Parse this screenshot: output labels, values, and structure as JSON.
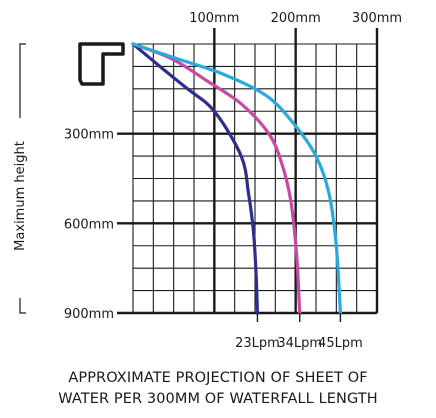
{
  "chart_data": {
    "type": "line",
    "x_ticks": [
      {
        "value": 100,
        "label": "100mm"
      },
      {
        "value": 200,
        "label": "200mm"
      },
      {
        "value": 300,
        "label": "300mm"
      }
    ],
    "y_ticks": [
      {
        "value": 300,
        "label": "300mm"
      },
      {
        "value": 600,
        "label": "600mm"
      },
      {
        "value": 900,
        "label": "900mm"
      }
    ],
    "xlim": [
      0,
      300
    ],
    "ylim": [
      0,
      900
    ],
    "ylabel": "Maximum height",
    "grid": true,
    "series": [
      {
        "name": "23Lpm",
        "color": "#2e2e8c",
        "x": [
          0,
          33,
          67,
          100,
          133,
          142,
          148,
          151,
          153
        ],
        "y": [
          0,
          75,
          150,
          225,
          375,
          500,
          625,
          750,
          900
        ]
      },
      {
        "name": "34Lpm",
        "color": "#c64aa4",
        "x": [
          0,
          48,
          92,
          133,
          167,
          183,
          194,
          201,
          205
        ],
        "y": [
          0,
          50,
          125,
          200,
          300,
          400,
          525,
          700,
          900
        ]
      },
      {
        "name": "45Lpm",
        "color": "#29a9dc",
        "x": [
          0,
          55,
          110,
          165,
          200,
          225,
          241,
          250,
          255
        ],
        "y": [
          0,
          50,
          100,
          175,
          275,
          375,
          500,
          675,
          900
        ]
      }
    ]
  },
  "caption": {
    "line1": "APPROXIMATE PROJECTION OF SHEET OF",
    "line2": "WATER PER 300MM OF WATERFALL LENGTH"
  }
}
